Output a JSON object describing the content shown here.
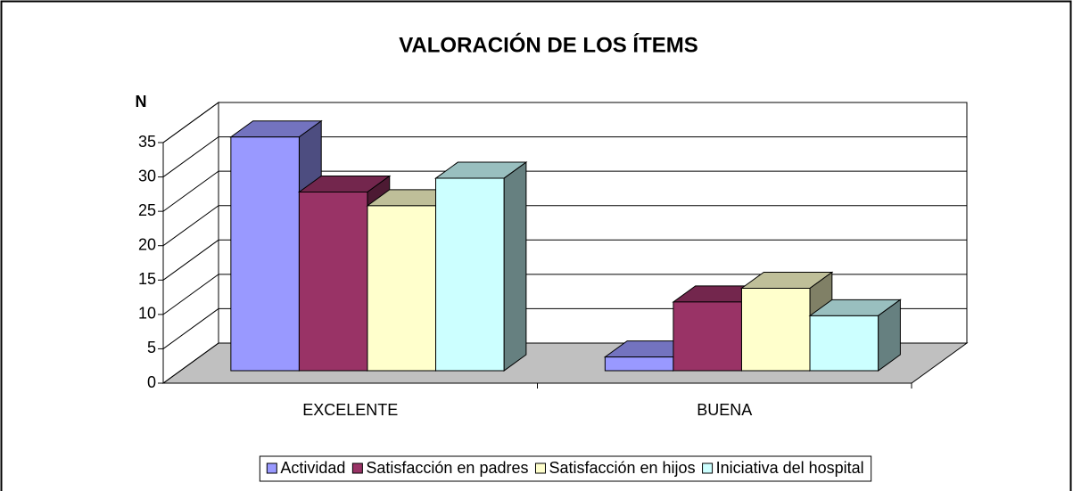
{
  "chart_data": {
    "type": "bar3d",
    "title": "VALORACIÓN DE LOS ÍTEMS",
    "y_label": "N",
    "categories": [
      "EXCELENTE",
      "BUENA"
    ],
    "series": [
      {
        "name": "Actividad",
        "color": "#9999ff",
        "values": [
          34,
          2
        ]
      },
      {
        "name": "Satisfacción en padres",
        "color": "#993366",
        "values": [
          26,
          10
        ]
      },
      {
        "name": "Satisfacción en hijos",
        "color": "#ffffcc",
        "values": [
          24,
          12
        ]
      },
      {
        "name": "Iniciativa del hospital",
        "color": "#ccffff",
        "values": [
          28,
          8
        ]
      }
    ],
    "ylim": [
      0,
      35
    ],
    "yticks": [
      0,
      5,
      10,
      15,
      20,
      25,
      30,
      35
    ],
    "grid": true,
    "legend": "bottom"
  }
}
